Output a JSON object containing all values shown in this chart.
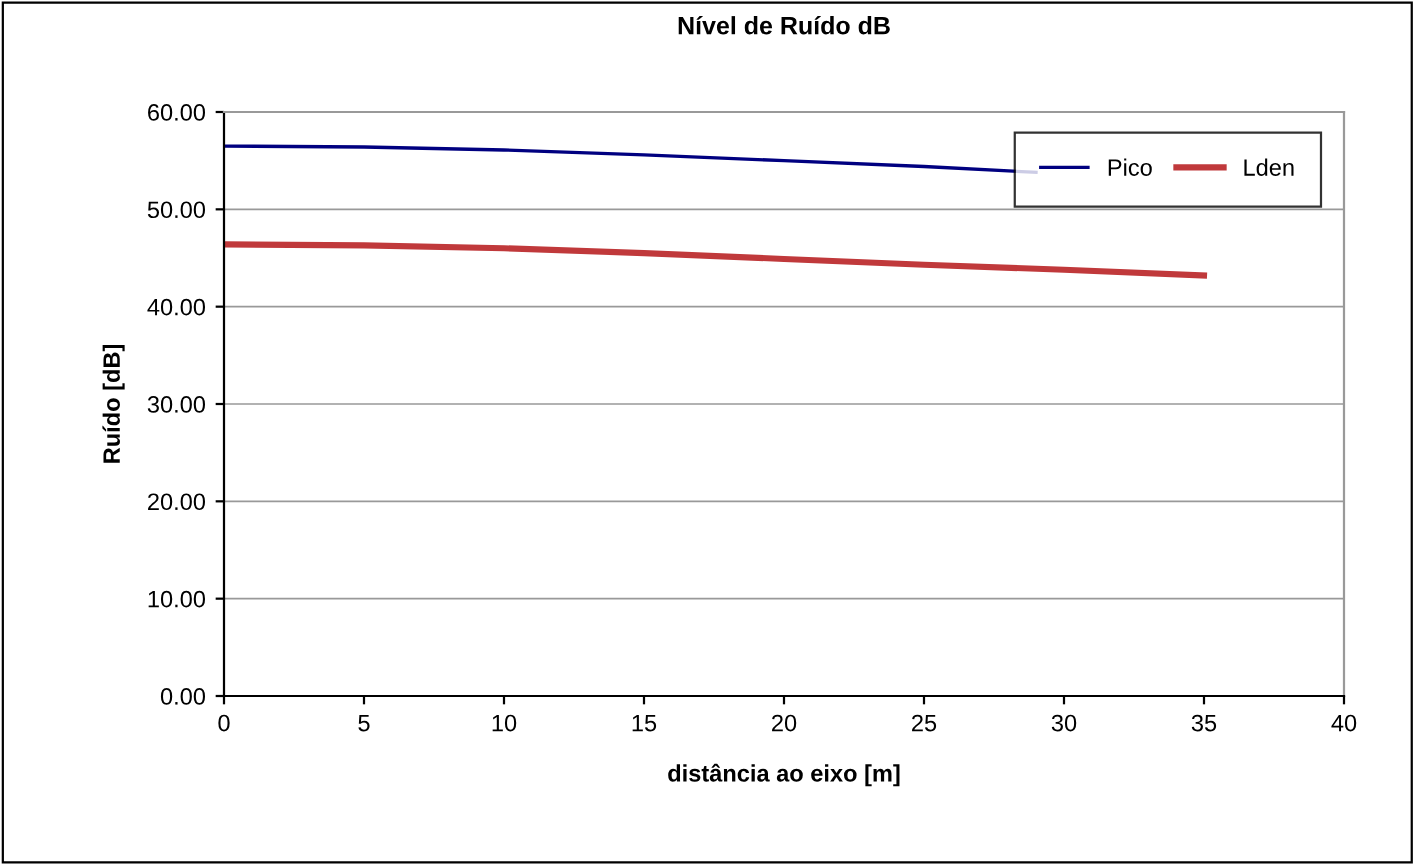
{
  "chart_data": {
    "type": "line",
    "title": "Nível de Ruído dB",
    "xlabel": "distância ao eixo [m]",
    "ylabel": "Ruído [dB]",
    "x": [
      0,
      5,
      10,
      15,
      20,
      25,
      30,
      35
    ],
    "series": [
      {
        "name": "Pico",
        "color": "#000080",
        "x": [
          0,
          5,
          10,
          15,
          20,
          25,
          29
        ],
        "values": [
          56.5,
          56.4,
          56.1,
          55.6,
          55.0,
          54.4,
          53.8
        ]
      },
      {
        "name": "Lden",
        "color": "#c0393b",
        "values": [
          46.4,
          46.3,
          46.0,
          45.5,
          44.9,
          44.3,
          43.8,
          43.2
        ]
      }
    ],
    "xlim": [
      0,
      40
    ],
    "xticks": [
      0,
      5,
      10,
      15,
      20,
      25,
      30,
      35,
      40
    ],
    "ylim": [
      0,
      60
    ],
    "yticks": [
      {
        "value": 0,
        "label": "0.00"
      },
      {
        "value": 10,
        "label": "10.00"
      },
      {
        "value": 20,
        "label": "20.00"
      },
      {
        "value": 30,
        "label": "30.00"
      },
      {
        "value": 40,
        "label": "40.00"
      },
      {
        "value": 50,
        "label": "50.00"
      },
      {
        "value": 60,
        "label": "60.00"
      }
    ],
    "grid": "y",
    "legend": "top right",
    "marker": "none",
    "line_style": "solid"
  }
}
